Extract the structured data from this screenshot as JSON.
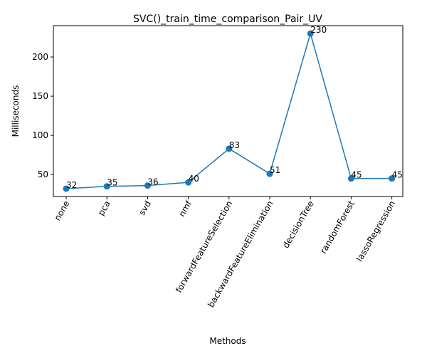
{
  "chart_data": {
    "type": "line",
    "title": "SVC()_train_time_comparison_Pair_UV",
    "xlabel": "Methods",
    "ylabel": "Milliseconds",
    "categories": [
      "none",
      "pca",
      "svd",
      "nmf",
      "forwardFeatureSelection",
      "backwardFeatureElimination",
      "decisionTree",
      "randomForest",
      "lassoRegression"
    ],
    "values": [
      32,
      35,
      36,
      40,
      83,
      51,
      230,
      45,
      45
    ],
    "data_labels": [
      "32",
      "35",
      "36",
      "40",
      "83",
      "51",
      "230",
      "45",
      "45"
    ],
    "ylim": [
      22,
      240
    ],
    "yticks": [
      50,
      100,
      150,
      200
    ],
    "ytick_labels": [
      "50",
      "100",
      "150",
      "200"
    ],
    "x_tick_rotation_deg": 60,
    "grid": false,
    "legend": "none",
    "series_color": "#1f77b4",
    "marker": "circle"
  }
}
